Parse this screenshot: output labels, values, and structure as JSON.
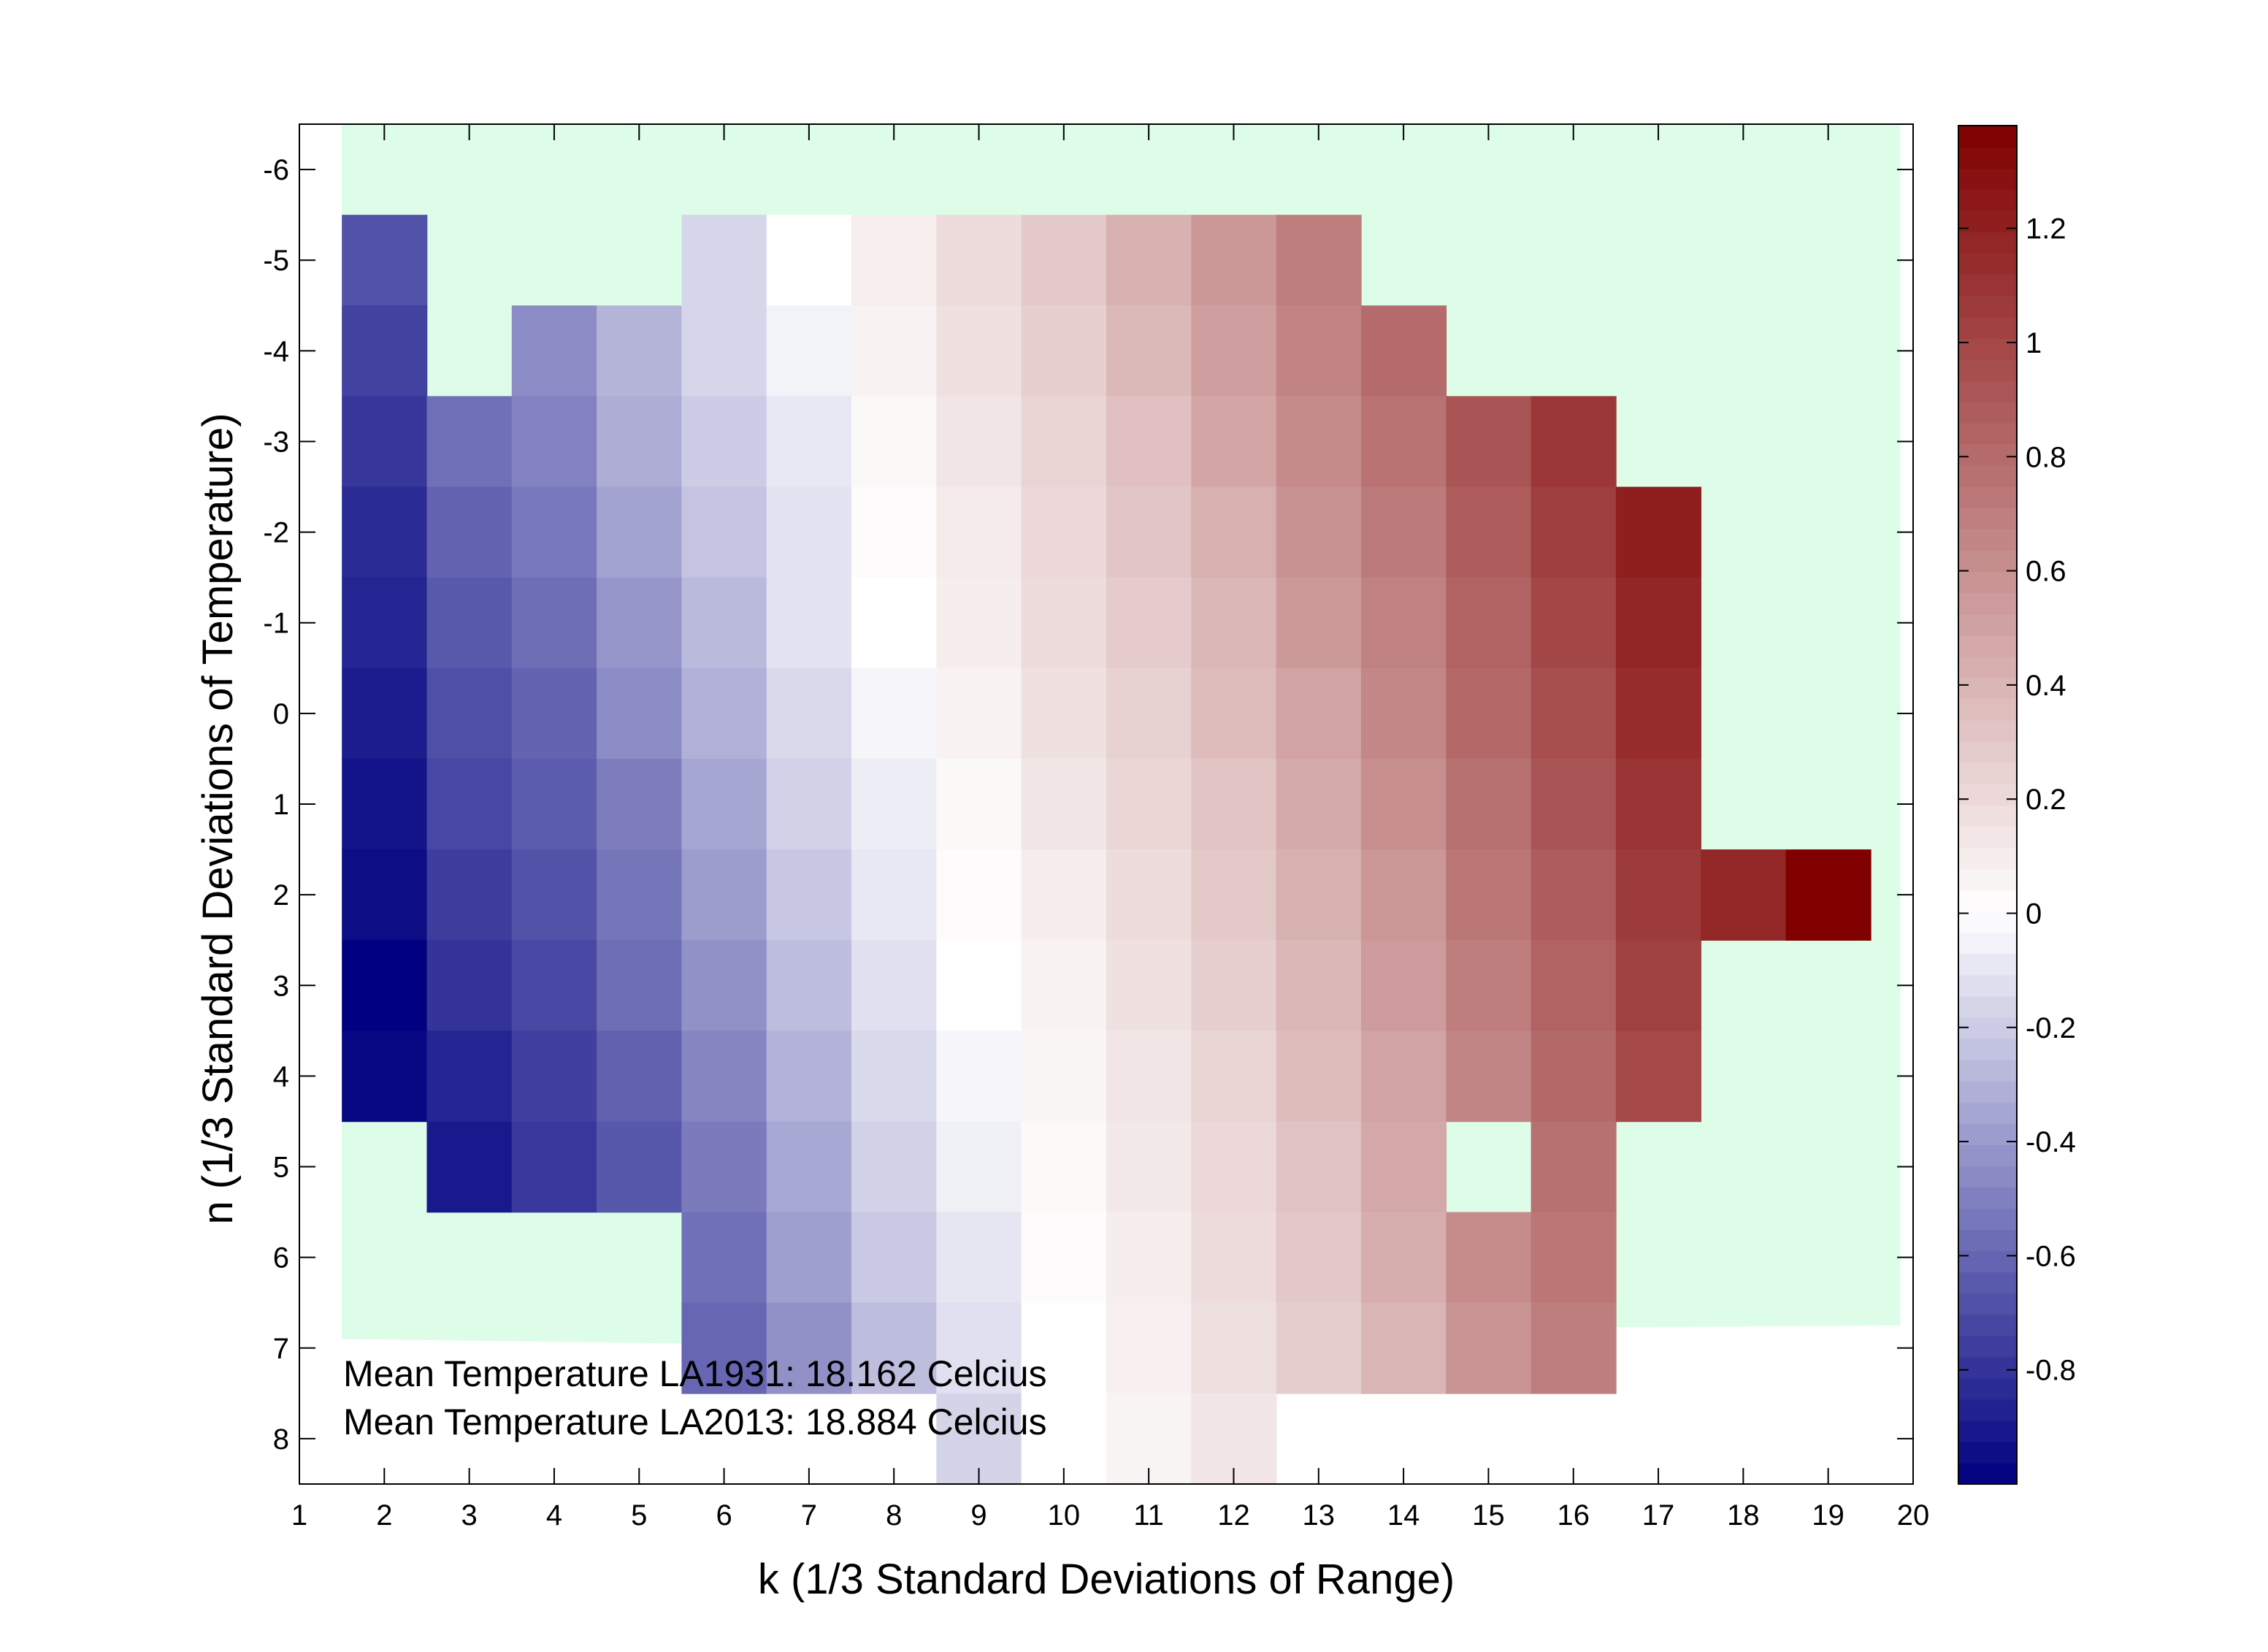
{
  "chart_data": {
    "type": "heatmap",
    "xlabel": "k (1/3 Standard Deviations of Range)",
    "ylabel": "n (1/3 Standard Deviations of Temperature)",
    "xlim": [
      1,
      20
    ],
    "ylim": [
      -6.5,
      8.5
    ],
    "y_reversed": true,
    "x_ticks": [
      1,
      2,
      3,
      4,
      5,
      6,
      7,
      8,
      9,
      10,
      11,
      12,
      13,
      14,
      15,
      16,
      17,
      18,
      19,
      20
    ],
    "y_ticks": [
      -6,
      -5,
      -4,
      -3,
      -2,
      -1,
      0,
      1,
      2,
      3,
      4,
      5,
      6,
      7,
      8
    ],
    "colorbar": {
      "range": [
        -1.0,
        1.38
      ],
      "ticks": [
        1.2,
        1,
        0.8,
        0.6,
        0.4,
        0.2,
        0,
        -0.2,
        -0.4,
        -0.6,
        -0.8
      ],
      "colormap": "blue-white-red",
      "colors": {
        "low": "#000080",
        "mid": "#ffffff",
        "high": "#800000"
      }
    },
    "background_color": "#ddfde8",
    "annotations": [
      "Mean Temperature LA1931:  18.162 Celcius",
      "Mean Temperature LA2013:  18.884 Celcius"
    ],
    "grid_ranges": [
      {
        "k": 2,
        "n_start": -5.5,
        "values": [
          -0.68,
          -0.74,
          -0.79,
          -0.83,
          -0.86,
          -0.89,
          -0.92,
          -0.95,
          -1.0,
          -0.97
        ]
      },
      {
        "k": 3,
        "n_start": -3.5,
        "values": [
          -0.56,
          -0.61,
          -0.65,
          -0.69,
          -0.72,
          -0.76,
          -0.8,
          -0.86,
          -0.9
        ]
      },
      {
        "k": 4,
        "n_start": -4.5,
        "values": [
          -0.45,
          -0.49,
          -0.53,
          -0.57,
          -0.61,
          -0.64,
          -0.68,
          -0.72,
          -0.75,
          -0.78
        ]
      },
      {
        "k": 5,
        "n_start": -4.5,
        "values": [
          -0.29,
          -0.32,
          -0.36,
          -0.41,
          -0.45,
          -0.51,
          -0.54,
          -0.57,
          -0.62,
          -0.66
        ]
      },
      {
        "k": 6,
        "n_start": -5.5,
        "values": [
          -0.16,
          -0.16,
          -0.2,
          -0.23,
          -0.27,
          -0.31,
          -0.35,
          -0.39,
          -0.43,
          -0.48,
          -0.52,
          -0.56,
          -0.6
        ]
      },
      {
        "k": 7,
        "n_start": -5.5,
        "values": [
          0.0,
          -0.05,
          -0.09,
          -0.11,
          -0.11,
          -0.15,
          -0.18,
          -0.22,
          -0.26,
          -0.3,
          -0.34,
          -0.38,
          -0.43
        ]
      },
      {
        "k": 8,
        "n_start": -5.5,
        "values": [
          0.09,
          0.07,
          0.04,
          0.02,
          0.0,
          -0.04,
          -0.07,
          -0.09,
          -0.12,
          -0.15,
          -0.18,
          -0.21,
          -0.26
        ]
      },
      {
        "k": 9,
        "n_start": -5.5,
        "values": [
          0.19,
          0.16,
          0.14,
          0.11,
          0.1,
          0.07,
          0.04,
          0.02,
          0.0,
          -0.04,
          -0.06,
          -0.1,
          -0.12,
          -0.17
        ]
      },
      {
        "k": 10,
        "n_start": -5.5,
        "values": [
          0.29,
          0.26,
          0.23,
          0.21,
          0.19,
          0.16,
          0.14,
          0.1,
          0.07,
          0.05,
          0.03,
          0.02,
          0.0,
          0.0
        ]
      },
      {
        "k": 11,
        "n_start": -5.5,
        "values": [
          0.42,
          0.38,
          0.34,
          0.31,
          0.28,
          0.25,
          0.22,
          0.19,
          0.16,
          0.14,
          0.12,
          0.1,
          0.08,
          0.06
        ]
      },
      {
        "k": 12,
        "n_start": -5.5,
        "values": [
          0.56,
          0.52,
          0.48,
          0.43,
          0.39,
          0.36,
          0.32,
          0.29,
          0.26,
          0.23,
          0.21,
          0.19,
          0.17,
          0.14
        ]
      },
      {
        "k": 13,
        "n_start": -5.5,
        "values": [
          0.7,
          0.67,
          0.63,
          0.59,
          0.55,
          0.5,
          0.46,
          0.43,
          0.39,
          0.36,
          0.33,
          0.3,
          0.27
        ]
      },
      {
        "k": 14,
        "n_start": -4.5,
        "values": [
          0.8,
          0.76,
          0.72,
          0.68,
          0.65,
          0.61,
          0.57,
          0.54,
          0.5,
          0.47,
          0.44,
          0.4
        ]
      },
      {
        "k": 15,
        "n_start": -3.5,
        "values": [
          0.92,
          0.88,
          0.85,
          0.81,
          0.77,
          0.74,
          0.7,
          0.66,
          null,
          0.62,
          0.58
        ]
      },
      {
        "k": 16,
        "n_start": -3.5,
        "values": [
          1.08,
          1.04,
          1.0,
          0.96,
          0.92,
          0.88,
          0.85,
          0.81,
          0.77,
          0.74,
          0.7
        ]
      },
      {
        "k": 17,
        "n_start": -2.5,
        "values": [
          1.22,
          1.18,
          1.14,
          1.1,
          1.06,
          1.03,
          0.99
        ]
      },
      {
        "k": 18,
        "n_start": 1.5,
        "values": [
          1.17
        ]
      },
      {
        "k": 19,
        "n_start": 1.5,
        "values": [
          1.38
        ]
      }
    ]
  }
}
